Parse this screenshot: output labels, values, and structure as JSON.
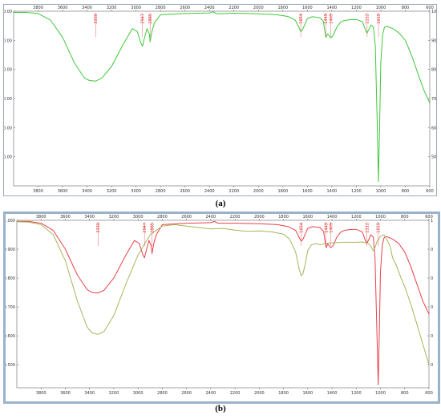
{
  "chart_data": [
    {
      "type": "line",
      "panel": "a",
      "caption": "(a)",
      "xlim": [
        4000,
        600
      ],
      "ylim": [
        40,
        100
      ],
      "x_ticks": [
        3800,
        3600,
        3400,
        3200,
        3000,
        2800,
        2600,
        2400,
        2200,
        2000,
        1800,
        1600,
        1400,
        1200,
        1000,
        800,
        600
      ],
      "y_ticks": [
        "100.00",
        "90.00",
        "80.00",
        "70.00",
        "60.00",
        "50.00"
      ],
      "y_tick_values": [
        100,
        90,
        80,
        70,
        60,
        50
      ],
      "peak_labels": [
        {
          "x": 3330,
          "label": "3330"
        },
        {
          "x": 2947,
          "label": "2947"
        },
        {
          "x": 2885,
          "label": "2885"
        },
        {
          "x": 1654,
          "label": "1654"
        },
        {
          "x": 1449,
          "label": "1449"
        },
        {
          "x": 1409,
          "label": "1409"
        },
        {
          "x": 1112,
          "label": "1112"
        },
        {
          "x": 1019,
          "label": "1019"
        }
      ],
      "series": [
        {
          "color": "#3ec83a",
          "points": [
            [
              4000,
              99.6
            ],
            [
              3900,
              99.6
            ],
            [
              3800,
              99.2
            ],
            [
              3700,
              97
            ],
            [
              3600,
              91
            ],
            [
              3500,
              82
            ],
            [
              3420,
              77
            ],
            [
              3380,
              76.2
            ],
            [
              3330,
              76
            ],
            [
              3280,
              77
            ],
            [
              3200,
              81
            ],
            [
              3100,
              89
            ],
            [
              3030,
              94
            ],
            [
              2990,
              93
            ],
            [
              2960,
              89
            ],
            [
              2947,
              88
            ],
            [
              2930,
              91
            ],
            [
              2910,
              94
            ],
            [
              2890,
              92
            ],
            [
              2885,
              89.5
            ],
            [
              2870,
              93
            ],
            [
              2850,
              96
            ],
            [
              2800,
              98.8
            ],
            [
              2600,
              99.2
            ],
            [
              2400,
              99.4
            ],
            [
              2370,
              99.8
            ],
            [
              2340,
              99.1
            ],
            [
              2200,
              99.3
            ],
            [
              2000,
              99.1
            ],
            [
              1850,
              98.8
            ],
            [
              1760,
              98.2
            ],
            [
              1700,
              97
            ],
            [
              1670,
              94.5
            ],
            [
              1654,
              93
            ],
            [
              1640,
              93.6
            ],
            [
              1600,
              97.5
            ],
            [
              1560,
              98.1
            ],
            [
              1500,
              97.8
            ],
            [
              1470,
              96.6
            ],
            [
              1449,
              91
            ],
            [
              1435,
              92.2
            ],
            [
              1420,
              91.5
            ],
            [
              1409,
              90.8
            ],
            [
              1390,
              91.6
            ],
            [
              1360,
              94.5
            ],
            [
              1330,
              96.2
            ],
            [
              1300,
              96.8
            ],
            [
              1250,
              97.1
            ],
            [
              1200,
              97.2
            ],
            [
              1150,
              96.4
            ],
            [
              1125,
              93.5
            ],
            [
              1112,
              92.5
            ],
            [
              1095,
              94
            ],
            [
              1080,
              95.3
            ],
            [
              1060,
              94.5
            ],
            [
              1045,
              88
            ],
            [
              1030,
              62
            ],
            [
              1019,
              41.5
            ],
            [
              1010,
              60
            ],
            [
              1000,
              82
            ],
            [
              985,
              92
            ],
            [
              970,
              94.5
            ],
            [
              950,
              94.8
            ],
            [
              900,
              94
            ],
            [
              850,
              92.5
            ],
            [
              800,
              90
            ],
            [
              750,
              85
            ],
            [
              700,
              79
            ],
            [
              650,
              73
            ],
            [
              600,
              68.5
            ]
          ]
        }
      ]
    },
    {
      "type": "line",
      "panel": "b",
      "caption": "(b)",
      "xlim": [
        4000,
        600
      ],
      "ylim": [
        0.42,
        1.0
      ],
      "x_ticks": [
        3800,
        3600,
        3400,
        3200,
        3000,
        2800,
        2600,
        2400,
        2200,
        2000,
        1800,
        1600,
        1400,
        1200,
        1000,
        800,
        600
      ],
      "y_ticks": [
        "1.000",
        "0.900",
        "0.800",
        "0.700",
        "0.600",
        "0.500"
      ],
      "y_tick_values": [
        1.0,
        0.9,
        0.8,
        0.7,
        0.6,
        0.5
      ],
      "peak_labels": [
        {
          "x": 3330,
          "label": "3330"
        },
        {
          "x": 2947,
          "label": "2947"
        },
        {
          "x": 2885,
          "label": "2885"
        },
        {
          "x": 1654,
          "label": "1654"
        },
        {
          "x": 1449,
          "label": "1449"
        },
        {
          "x": 1409,
          "label": "1409"
        },
        {
          "x": 1112,
          "label": "1112"
        },
        {
          "x": 1019,
          "label": "1019"
        }
      ],
      "series": [
        {
          "color": "#e8404a",
          "points": [
            [
              4000,
              0.996
            ],
            [
              3900,
              0.996
            ],
            [
              3800,
              0.99
            ],
            [
              3700,
              0.965
            ],
            [
              3600,
              0.9
            ],
            [
              3500,
              0.81
            ],
            [
              3420,
              0.76
            ],
            [
              3380,
              0.75
            ],
            [
              3330,
              0.748
            ],
            [
              3280,
              0.758
            ],
            [
              3200,
              0.8
            ],
            [
              3100,
              0.88
            ],
            [
              3030,
              0.93
            ],
            [
              2990,
              0.92
            ],
            [
              2960,
              0.88
            ],
            [
              2947,
              0.87
            ],
            [
              2930,
              0.9
            ],
            [
              2910,
              0.93
            ],
            [
              2890,
              0.91
            ],
            [
              2885,
              0.885
            ],
            [
              2870,
              0.92
            ],
            [
              2850,
              0.95
            ],
            [
              2800,
              0.985
            ],
            [
              2600,
              0.99
            ],
            [
              2400,
              0.992
            ],
            [
              2370,
              0.996
            ],
            [
              2340,
              0.99
            ],
            [
              2200,
              0.99
            ],
            [
              2000,
              0.988
            ],
            [
              1850,
              0.985
            ],
            [
              1760,
              0.978
            ],
            [
              1700,
              0.965
            ],
            [
              1670,
              0.94
            ],
            [
              1654,
              0.928
            ],
            [
              1640,
              0.934
            ],
            [
              1600,
              0.972
            ],
            [
              1560,
              0.978
            ],
            [
              1500,
              0.975
            ],
            [
              1470,
              0.962
            ],
            [
              1449,
              0.905
            ],
            [
              1435,
              0.918
            ],
            [
              1420,
              0.91
            ],
            [
              1409,
              0.905
            ],
            [
              1390,
              0.913
            ],
            [
              1360,
              0.942
            ],
            [
              1330,
              0.958
            ],
            [
              1300,
              0.965
            ],
            [
              1250,
              0.968
            ],
            [
              1200,
              0.969
            ],
            [
              1150,
              0.96
            ],
            [
              1125,
              0.93
            ],
            [
              1112,
              0.92
            ],
            [
              1095,
              0.935
            ],
            [
              1080,
              0.95
            ],
            [
              1060,
              0.942
            ],
            [
              1045,
              0.87
            ],
            [
              1030,
              0.62
            ],
            [
              1019,
              0.43
            ],
            [
              1010,
              0.6
            ],
            [
              1000,
              0.82
            ],
            [
              985,
              0.915
            ],
            [
              970,
              0.94
            ],
            [
              950,
              0.944
            ],
            [
              900,
              0.935
            ],
            [
              850,
              0.92
            ],
            [
              800,
              0.89
            ],
            [
              750,
              0.84
            ],
            [
              700,
              0.78
            ],
            [
              650,
              0.72
            ],
            [
              600,
              0.675
            ]
          ]
        },
        {
          "color": "#a8b55a",
          "points": [
            [
              4000,
              0.995
            ],
            [
              3900,
              0.994
            ],
            [
              3800,
              0.985
            ],
            [
              3700,
              0.95
            ],
            [
              3600,
              0.86
            ],
            [
              3500,
              0.72
            ],
            [
              3420,
              0.63
            ],
            [
              3380,
              0.61
            ],
            [
              3330,
              0.605
            ],
            [
              3280,
              0.615
            ],
            [
              3200,
              0.67
            ],
            [
              3100,
              0.78
            ],
            [
              3000,
              0.88
            ],
            [
              2900,
              0.95
            ],
            [
              2800,
              0.98
            ],
            [
              2700,
              0.985
            ],
            [
              2600,
              0.98
            ],
            [
              2500,
              0.975
            ],
            [
              2400,
              0.97
            ],
            [
              2300,
              0.972
            ],
            [
              2200,
              0.966
            ],
            [
              2100,
              0.962
            ],
            [
              2000,
              0.963
            ],
            [
              1900,
              0.96
            ],
            [
              1800,
              0.952
            ],
            [
              1750,
              0.935
            ],
            [
              1700,
              0.89
            ],
            [
              1670,
              0.83
            ],
            [
              1654,
              0.808
            ],
            [
              1640,
              0.815
            ],
            [
              1620,
              0.85
            ],
            [
              1600,
              0.895
            ],
            [
              1570,
              0.915
            ],
            [
              1530,
              0.92
            ],
            [
              1500,
              0.915
            ],
            [
              1450,
              0.92
            ],
            [
              1400,
              0.922
            ],
            [
              1300,
              0.924
            ],
            [
              1200,
              0.924
            ],
            [
              1150,
              0.925
            ],
            [
              1100,
              0.92
            ],
            [
              1080,
              0.91
            ],
            [
              1060,
              0.895
            ],
            [
              1045,
              0.905
            ],
            [
              1030,
              0.925
            ],
            [
              1000,
              0.945
            ],
            [
              970,
              0.95
            ],
            [
              950,
              0.935
            ],
            [
              920,
              0.91
            ],
            [
              900,
              0.87
            ],
            [
              870,
              0.845
            ],
            [
              830,
              0.8
            ],
            [
              800,
              0.77
            ],
            [
              750,
              0.71
            ],
            [
              700,
              0.64
            ],
            [
              650,
              0.57
            ],
            [
              600,
              0.5
            ]
          ]
        }
      ]
    }
  ]
}
